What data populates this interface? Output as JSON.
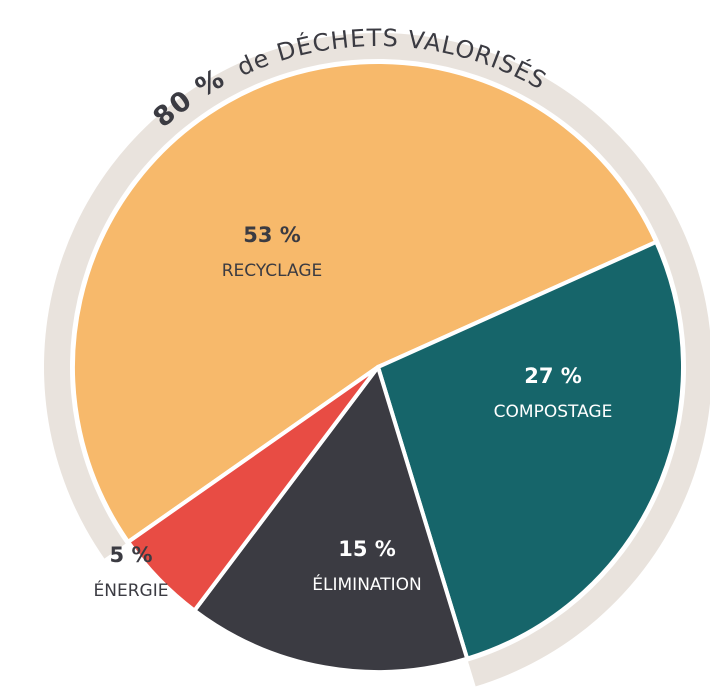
{
  "chart_data": {
    "type": "pie",
    "annotation": {
      "highlight": "80 %",
      "text": "de DÉCHETS VALORISÉS"
    },
    "categories": [
      "RECYCLAGE",
      "COMPOSTAGE",
      "ÉLIMINATION",
      "ÉNERGIE"
    ],
    "values": [
      53,
      27,
      15,
      5
    ],
    "value_labels": [
      "53 %",
      "27 %",
      "15 %",
      "5 %"
    ],
    "colors": [
      "#f7b96b",
      "#16656a",
      "#3b3b42",
      "#e84c44"
    ]
  }
}
